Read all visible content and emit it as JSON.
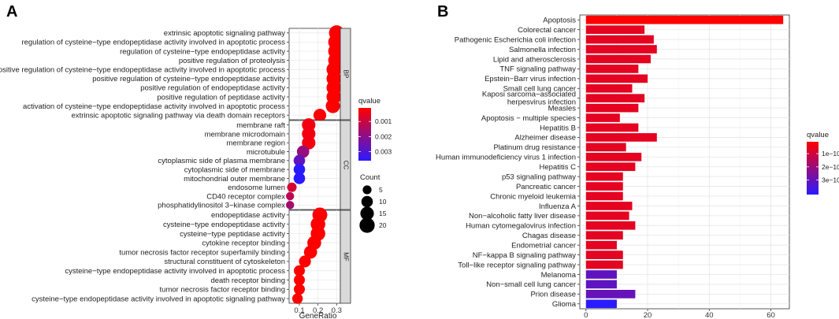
{
  "chart_data": [
    {
      "panel": "A",
      "type": "scatter",
      "xlabel": "GeneRatio",
      "xticks": [
        0.1,
        0.2,
        0.3
      ],
      "xlim": [
        0.045,
        0.32
      ],
      "facets": [
        {
          "name": "BP",
          "terms": [
            {
              "label": "extrinsic apoptotic signaling pathway",
              "gene_ratio": 0.3,
              "count": 20,
              "qvalue": 0.0001
            },
            {
              "label": "regulation of cysteine−type endopeptidase activity involved in apoptotic process",
              "gene_ratio": 0.295,
              "count": 19,
              "qvalue": 0.0001
            },
            {
              "label": "regulation of cysteine−type endopeptidase activity",
              "gene_ratio": 0.295,
              "count": 19,
              "qvalue": 0.0001
            },
            {
              "label": "positive regulation of proteolysis",
              "gene_ratio": 0.295,
              "count": 19,
              "qvalue": 0.0001
            },
            {
              "label": "positive regulation of cysteine−type endopeptidase activity involved in apoptotic process",
              "gene_ratio": 0.285,
              "count": 18,
              "qvalue": 0.0001
            },
            {
              "label": "positive regulation of cysteine−type endopeptidase activity",
              "gene_ratio": 0.285,
              "count": 18,
              "qvalue": 0.0001
            },
            {
              "label": "positive regulation of endopeptidase activity",
              "gene_ratio": 0.285,
              "count": 18,
              "qvalue": 0.0001
            },
            {
              "label": "positive regulation of peptidase activity",
              "gene_ratio": 0.285,
              "count": 18,
              "qvalue": 0.0001
            },
            {
              "label": "activation of cysteine−type endopeptidase activity involved in apoptotic process",
              "gene_ratio": 0.28,
              "count": 17,
              "qvalue": 0.0001
            },
            {
              "label": "extrinsic apoptotic signaling pathway via death domain receptors",
              "gene_ratio": 0.21,
              "count": 13,
              "qvalue": 0.0002
            }
          ]
        },
        {
          "name": "CC",
          "terms": [
            {
              "label": "membrane raft",
              "gene_ratio": 0.15,
              "count": 15,
              "qvalue": 0.0003
            },
            {
              "label": "membrane microdomain",
              "gene_ratio": 0.15,
              "count": 15,
              "qvalue": 0.0003
            },
            {
              "label": "membrane region",
              "gene_ratio": 0.15,
              "count": 15,
              "qvalue": 0.0003
            },
            {
              "label": "microtubule",
              "gene_ratio": 0.12,
              "count": 12,
              "qvalue": 0.0018
            },
            {
              "label": "cytoplasmic side of plasma membrane",
              "gene_ratio": 0.1,
              "count": 10,
              "qvalue": 0.0027
            },
            {
              "label": "cytoplasmic side of membrane",
              "gene_ratio": 0.1,
              "count": 10,
              "qvalue": 0.0036
            },
            {
              "label": "mitochondrial outer membrane",
              "gene_ratio": 0.1,
              "count": 10,
              "qvalue": 0.0036
            },
            {
              "label": "endosome lumen",
              "gene_ratio": 0.06,
              "count": 6,
              "qvalue": 0.0008
            },
            {
              "label": "CD40 receptor complex",
              "gene_ratio": 0.05,
              "count": 4,
              "qvalue": 0.0012
            },
            {
              "label": "phosphatidylinositol 3−kinase complex",
              "gene_ratio": 0.05,
              "count": 4,
              "qvalue": 0.0016
            }
          ]
        },
        {
          "name": "MF",
          "terms": [
            {
              "label": "endopeptidase activity",
              "gene_ratio": 0.21,
              "count": 19,
              "qvalue": 0.0001
            },
            {
              "label": "cysteine−type endopeptidase activity",
              "gene_ratio": 0.2,
              "count": 18,
              "qvalue": 0.0001
            },
            {
              "label": "cysteine−type peptidase activity",
              "gene_ratio": 0.2,
              "count": 18,
              "qvalue": 0.0001
            },
            {
              "label": "cytokine receptor binding",
              "gene_ratio": 0.18,
              "count": 16,
              "qvalue": 0.0001
            },
            {
              "label": "tumor necrosis factor receptor superfamily binding",
              "gene_ratio": 0.16,
              "count": 14,
              "qvalue": 0.0001
            },
            {
              "label": "structural constituent of cytoskeleton",
              "gene_ratio": 0.13,
              "count": 11,
              "qvalue": 0.0001
            },
            {
              "label": "cysteine−type endopeptidase activity involved in apoptotic process",
              "gene_ratio": 0.1,
              "count": 9,
              "qvalue": 0.0001
            },
            {
              "label": "death receptor binding",
              "gene_ratio": 0.1,
              "count": 9,
              "qvalue": 0.0001
            },
            {
              "label": "tumor necrosis factor receptor binding",
              "gene_ratio": 0.1,
              "count": 9,
              "qvalue": 0.0001
            },
            {
              "label": "cysteine−type endopeptidase activity involved in apoptotic signaling pathway",
              "gene_ratio": 0.09,
              "count": 8,
              "qvalue": 0.0001
            }
          ]
        }
      ],
      "color_legend": {
        "title": "qvalue",
        "ticks": [
          0.001,
          0.002,
          0.003
        ],
        "tick_labels": [
          "0.001",
          "0.002",
          "0.003"
        ],
        "range": [
          0.0001,
          0.0036
        ],
        "low_color": "#ff0000",
        "high_color": "#2a1aff"
      },
      "size_legend": {
        "title": "Count",
        "values": [
          5,
          10,
          15,
          20
        ],
        "labels": [
          "5",
          "10",
          "15",
          "20"
        ]
      }
    },
    {
      "panel": "B",
      "type": "bar",
      "orientation": "horizontal",
      "xticks": [
        0,
        20,
        40,
        60
      ],
      "xlim": [
        -2,
        66
      ],
      "bars": [
        {
          "label": "Apoptosis",
          "count": 64,
          "qvalue": 1e-11
        },
        {
          "label": "Colorectal cancer",
          "count": 19,
          "qvalue": 6e-11
        },
        {
          "label": "Pathogenic Escherichia coli infection",
          "count": 22,
          "qvalue": 6e-11
        },
        {
          "label": "Salmonella infection",
          "count": 23,
          "qvalue": 6e-11
        },
        {
          "label": "Lipid and atherosclerosis",
          "count": 21,
          "qvalue": 6e-11
        },
        {
          "label": "TNF signaling pathway",
          "count": 17,
          "qvalue": 6e-11
        },
        {
          "label": "Epstein−Barr virus infection",
          "count": 20,
          "qvalue": 6e-11
        },
        {
          "label": "Small cell lung cancer",
          "count": 15,
          "qvalue": 6e-11
        },
        {
          "label": "Kaposi sarcoma−associated herpesvirus infection",
          "label_lines": [
            "Kaposi sarcoma−associated",
            "herpesvirus infection"
          ],
          "count": 19,
          "qvalue": 6e-11
        },
        {
          "label": "Measles",
          "count": 17,
          "qvalue": 6e-11
        },
        {
          "label": "Apoptosis − multiple species",
          "count": 11,
          "qvalue": 6e-11
        },
        {
          "label": "Hepatitis B",
          "count": 17,
          "qvalue": 6e-11
        },
        {
          "label": "Alzheimer disease",
          "count": 23,
          "qvalue": 6e-11
        },
        {
          "label": "Platinum drug resistance",
          "count": 13,
          "qvalue": 6e-11
        },
        {
          "label": "Human immunodeficiency virus 1 infection",
          "count": 18,
          "qvalue": 6e-11
        },
        {
          "label": "Hepatitis C",
          "count": 16,
          "qvalue": 6e-11
        },
        {
          "label": "p53 signaling pathway",
          "count": 12,
          "qvalue": 6e-11
        },
        {
          "label": "Pancreatic cancer",
          "count": 12,
          "qvalue": 6e-11
        },
        {
          "label": "Chronic myeloid leukemia",
          "count": 12,
          "qvalue": 6e-11
        },
        {
          "label": "Influenza A",
          "count": 15,
          "qvalue": 6e-11
        },
        {
          "label": "Non−alcoholic fatty liver disease",
          "count": 14,
          "qvalue": 6e-11
        },
        {
          "label": "Human cytomegalovirus infection",
          "count": 16,
          "qvalue": 6e-11
        },
        {
          "label": "Chagas disease",
          "count": 12,
          "qvalue": 6e-11
        },
        {
          "label": "Endometrial cancer",
          "count": 10,
          "qvalue": 6e-11
        },
        {
          "label": "NF−kappa B signaling pathway",
          "count": 12,
          "qvalue": 6e-11
        },
        {
          "label": "Toll−like receptor signaling pathway",
          "count": 12,
          "qvalue": 6e-11
        },
        {
          "label": "Melanoma",
          "count": 10,
          "qvalue": 3.1e-10
        },
        {
          "label": "Non−small cell lung cancer",
          "count": 10,
          "qvalue": 3.1e-10
        },
        {
          "label": "Prion disease",
          "count": 16,
          "qvalue": 3e-10
        },
        {
          "label": "Glioma",
          "count": 10,
          "qvalue": 4.1e-10
        }
      ],
      "color_legend": {
        "title": "qvalue",
        "ticks": [
          1e-10,
          2e-10,
          3e-10
        ],
        "tick_labels": [
          "1e−10",
          "2e−10",
          "3e−10"
        ],
        "range": [
          1e-11,
          4.1e-10
        ],
        "low_color": "#ff0000",
        "high_color": "#2a1aff"
      }
    }
  ],
  "panel_labels": {
    "a": "A",
    "b": "B"
  }
}
